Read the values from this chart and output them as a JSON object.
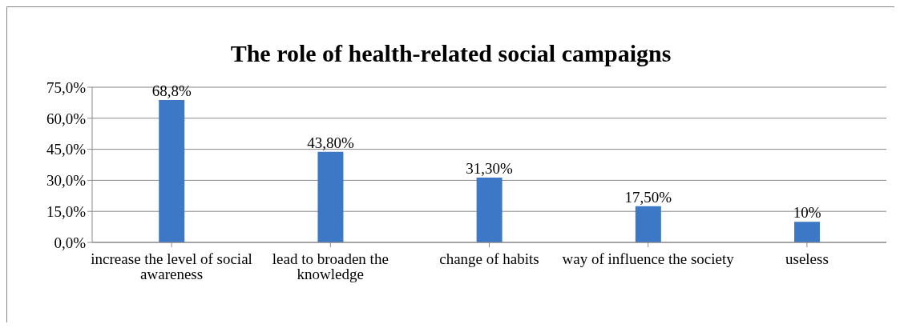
{
  "chart_data": {
    "type": "bar",
    "title": "The role of health-related social campaigns",
    "categories": [
      "increase the level of social awareness",
      "lead to broaden the knowledge",
      "change of habits",
      "way of influence the society",
      "useless"
    ],
    "values": [
      68.8,
      43.8,
      31.3,
      17.5,
      10
    ],
    "value_labels": [
      "68,8%",
      "43,80%",
      "31,30%",
      "17,50%",
      "10%"
    ],
    "color": "#3d78c6",
    "ylim": [
      0,
      75
    ],
    "yticks": [
      {
        "value": 0,
        "label": "0,0%"
      },
      {
        "value": 15,
        "label": "15,0%"
      },
      {
        "value": 30,
        "label": "30,0%"
      },
      {
        "value": 45,
        "label": "45,0%"
      },
      {
        "value": 60,
        "label": "60,0%"
      },
      {
        "value": 75,
        "label": "75,0%"
      }
    ],
    "grid": "y",
    "legend": false
  }
}
